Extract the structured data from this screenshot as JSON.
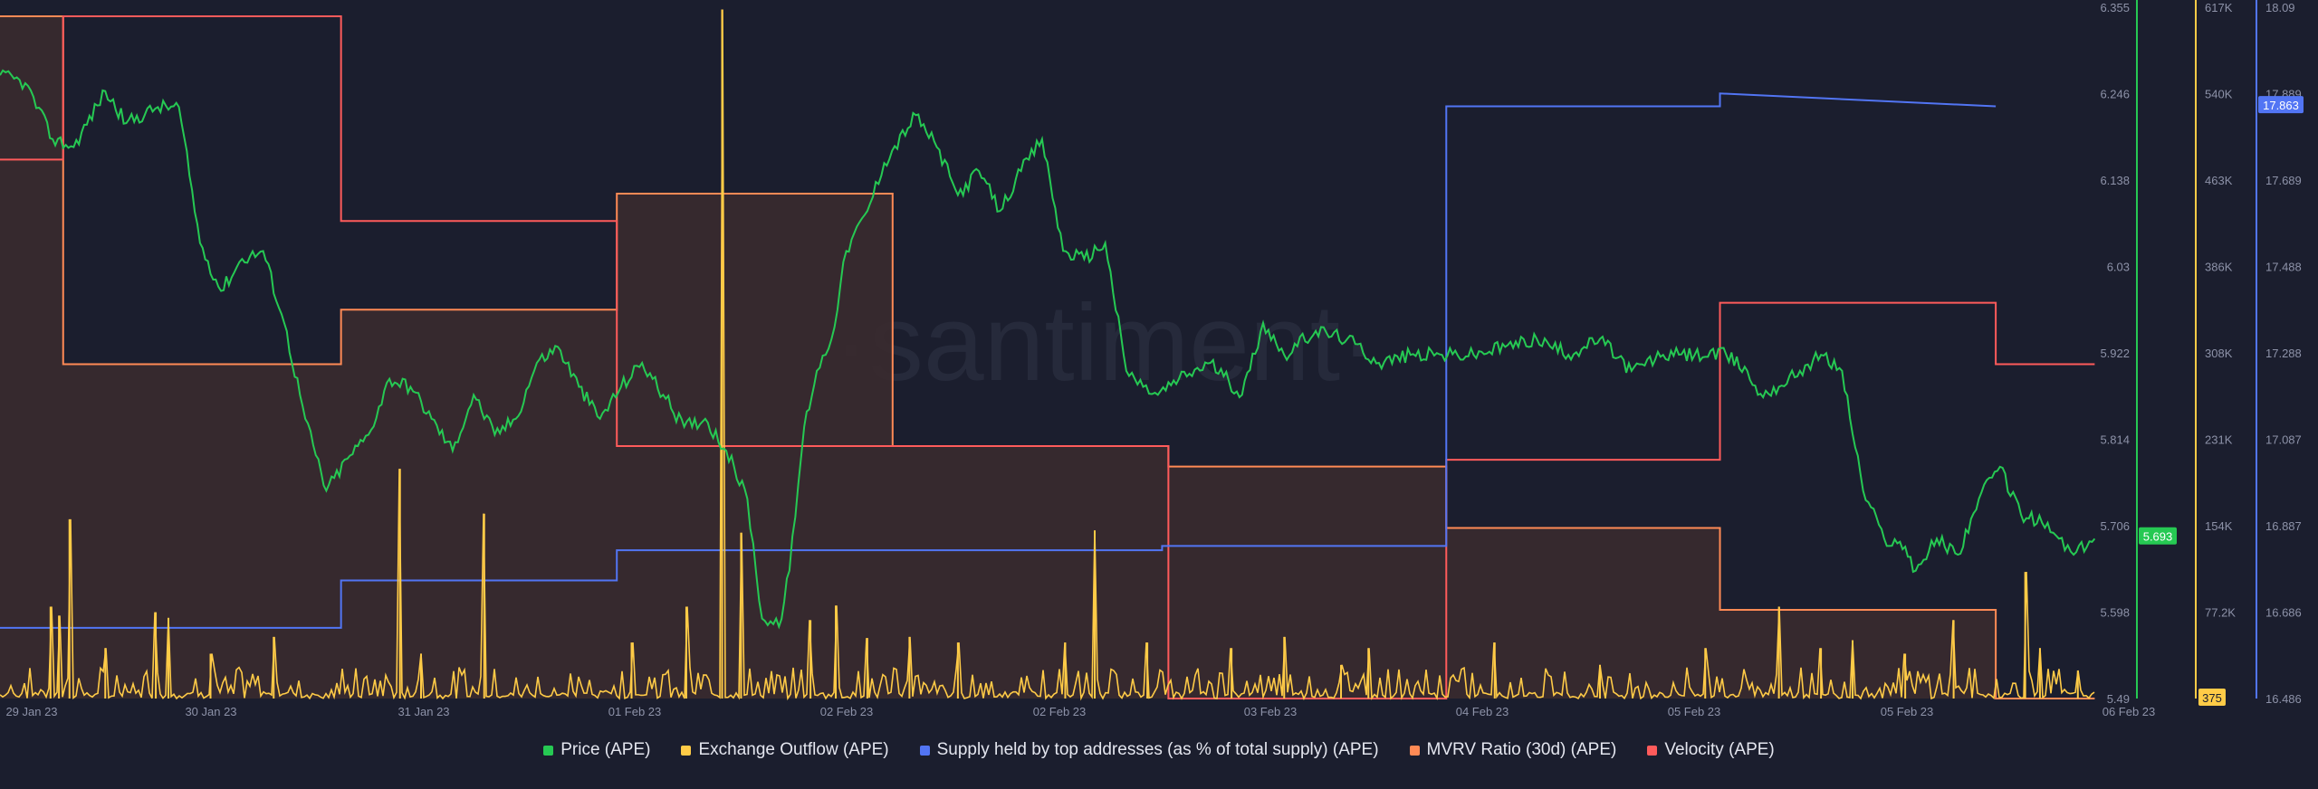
{
  "colors": {
    "background": "#1b1e2e",
    "price": "#26c953",
    "outflow": "#ffcb47",
    "supply": "#5275f4",
    "mvrv": "#ff8a55",
    "velocity": "#ff5b5b",
    "price_badge": "#26c953",
    "supply_badge": "#5275f4",
    "outflow_badge": "#ffcb47"
  },
  "watermark": "·santiment·",
  "badges": {
    "price": "5.693",
    "supply": "17.863",
    "outflow": "375"
  },
  "legend": [
    {
      "label": "Price (APE)",
      "color_key": "price",
      "name": "legend-price"
    },
    {
      "label": "Exchange Outflow (APE)",
      "color_key": "outflow",
      "name": "legend-exchange-outflow"
    },
    {
      "label": "Supply held by top addresses (as % of total supply) (APE)",
      "color_key": "supply",
      "name": "legend-supply-top-addresses"
    },
    {
      "label": "MVRV Ratio (30d) (APE)",
      "color_key": "mvrv",
      "name": "legend-mvrv-ratio"
    },
    {
      "label": "Velocity (APE)",
      "color_key": "velocity",
      "name": "legend-velocity"
    }
  ],
  "chart_data": {
    "type": "line",
    "x_ticks": [
      "29 Jan 23",
      "30 Jan 23",
      "31 Jan 23",
      "01 Feb 23",
      "02 Feb 23",
      "02 Feb 23",
      "03 Feb 23",
      "04 Feb 23",
      "05 Feb 23",
      "05 Feb 23",
      "06 Feb 23"
    ],
    "axes": {
      "price": {
        "ticks": [
          "6.355",
          "6.246",
          "6.138",
          "6.03",
          "5.922",
          "5.814",
          "5.706",
          "5.598",
          "5.49"
        ],
        "ylim": [
          5.49,
          6.355
        ]
      },
      "outflow": {
        "ticks": [
          "617K",
          "540K",
          "463K",
          "386K",
          "308K",
          "231K",
          "154K",
          "77.2K",
          ""
        ],
        "ylim": [
          0,
          617000
        ]
      },
      "supply": {
        "ticks": [
          "18.09",
          "17.889",
          "17.689",
          "17.488",
          "17.288",
          "17.087",
          "16.887",
          "16.686",
          "16.486"
        ],
        "ylim": [
          16.486,
          18.09
        ]
      }
    },
    "grid": false,
    "legend_position": "bottom",
    "series": [
      {
        "name": "Price (APE)",
        "axis": "price",
        "x": [
          0,
          0.12,
          0.25,
          0.35,
          0.5,
          0.6,
          0.75,
          0.85,
          0.95,
          1.05,
          1.15,
          1.25,
          1.35,
          1.45,
          1.55,
          1.65,
          1.75,
          1.85,
          1.95,
          2.05,
          2.15,
          2.25,
          2.35,
          2.45,
          2.55,
          2.65,
          2.75,
          2.85,
          2.95,
          3.05,
          3.15,
          3.25,
          3.35,
          3.45,
          3.55,
          3.62,
          3.7,
          3.75,
          3.82,
          3.88,
          3.95,
          4.02,
          4.12,
          4.2,
          4.35,
          4.45,
          4.55,
          4.65,
          4.75,
          4.85,
          4.95,
          5.05,
          5.15,
          5.25,
          5.35,
          5.43,
          5.5,
          5.6,
          5.75,
          5.9,
          6.0,
          6.1,
          6.25,
          6.4,
          6.55,
          6.7,
          6.85,
          7.0,
          7.15,
          7.3,
          7.45,
          7.6,
          7.75,
          7.9,
          8.05,
          8.2,
          8.3,
          8.35,
          8.45,
          8.55,
          8.65,
          8.75,
          8.85,
          8.95,
          9.05,
          9.1,
          9.2,
          9.3,
          9.4,
          9.5,
          9.6,
          9.7,
          9.78,
          9.85,
          9.95
        ],
        "values": [
          6.27,
          6.26,
          6.19,
          6.18,
          6.25,
          6.21,
          6.23,
          6.23,
          6.06,
          6.0,
          6.04,
          6.05,
          5.96,
          5.84,
          5.75,
          5.79,
          5.82,
          5.89,
          5.88,
          5.84,
          5.8,
          5.87,
          5.82,
          5.84,
          5.91,
          5.93,
          5.88,
          5.84,
          5.88,
          5.91,
          5.87,
          5.83,
          5.84,
          5.8,
          5.74,
          5.59,
          5.58,
          5.65,
          5.83,
          5.9,
          5.94,
          6.05,
          6.1,
          6.16,
          6.22,
          6.18,
          6.12,
          6.15,
          6.1,
          6.15,
          6.19,
          6.05,
          6.04,
          6.06,
          5.9,
          5.88,
          5.87,
          5.89,
          5.91,
          5.87,
          5.96,
          5.92,
          5.95,
          5.94,
          5.91,
          5.92,
          5.92,
          5.92,
          5.93,
          5.94,
          5.92,
          5.94,
          5.9,
          5.92,
          5.92,
          5.92,
          5.9,
          5.87,
          5.88,
          5.9,
          5.92,
          5.9,
          5.75,
          5.69,
          5.68,
          5.65,
          5.69,
          5.67,
          5.74,
          5.78,
          5.72,
          5.71,
          5.69,
          5.67,
          5.69
        ]
      },
      {
        "name": "Exchange Outflow (APE)",
        "axis": "outflow",
        "x": [
          0.24,
          0.28,
          0.33,
          0.5,
          0.74,
          0.8,
          1.0,
          1.3,
          1.9,
          2.0,
          2.3,
          3.0,
          3.26,
          3.43,
          3.52,
          3.85,
          3.97,
          4.12,
          4.32,
          4.55,
          5.06,
          5.2,
          5.45,
          5.85,
          6.1,
          6.37,
          6.5,
          7.1,
          7.6,
          8.1,
          8.45,
          8.65,
          8.8,
          9.05,
          9.28,
          9.62,
          9.69,
          9.87
        ],
        "values": [
          82000,
          74000,
          160000,
          45000,
          77000,
          72000,
          40000,
          55000,
          205000,
          40000,
          165000,
          50000,
          82000,
          615000,
          148000,
          70000,
          83000,
          54000,
          55000,
          50000,
          50000,
          150000,
          50000,
          45000,
          55000,
          30000,
          45000,
          50000,
          30000,
          45000,
          82000,
          45000,
          52000,
          40000,
          70000,
          113000,
          45000,
          25000
        ]
      },
      {
        "name": "Supply held by top addresses (as % of total supply) (APE)",
        "axis": "supply",
        "x": [
          0,
          1.62,
          1.62,
          2.93,
          2.93,
          5.52,
          5.52,
          6.87,
          6.87,
          8.17,
          8.17,
          9.48
        ],
        "values": [
          16.65,
          16.65,
          16.76,
          16.76,
          16.83,
          16.83,
          16.84,
          16.84,
          17.86,
          17.86,
          17.89,
          17.86
        ]
      },
      {
        "name": "MVRV Ratio (30d) (APE)",
        "axis": "mvrv",
        "x": [
          0,
          0.3,
          0.3,
          1.62,
          1.62,
          2.93,
          2.93,
          4.24,
          4.24,
          5.55,
          5.55,
          6.87,
          6.87,
          8.17,
          8.17,
          9.48,
          9.48,
          9.95
        ],
        "values": [
          1.0,
          1.0,
          0.49,
          0.49,
          0.57,
          0.57,
          0.74,
          0.74,
          0.37,
          0.37,
          0.34,
          0.34,
          0.25,
          0.25,
          0.13,
          0.13,
          0.0,
          0.0
        ]
      },
      {
        "name": "Velocity (APE)",
        "axis": "velocity",
        "x": [
          0,
          0.3,
          0.3,
          1.62,
          1.62,
          2.93,
          2.93,
          4.24,
          4.24,
          5.55,
          5.55,
          6.87,
          6.87,
          8.17,
          8.17,
          9.48,
          9.48,
          9.95
        ],
        "values": [
          0.79,
          0.79,
          1.0,
          1.0,
          0.7,
          0.7,
          0.37,
          0.37,
          0.37,
          0.37,
          0.0,
          0.0,
          0.35,
          0.35,
          0.58,
          0.58,
          0.49,
          0.49
        ]
      }
    ]
  }
}
